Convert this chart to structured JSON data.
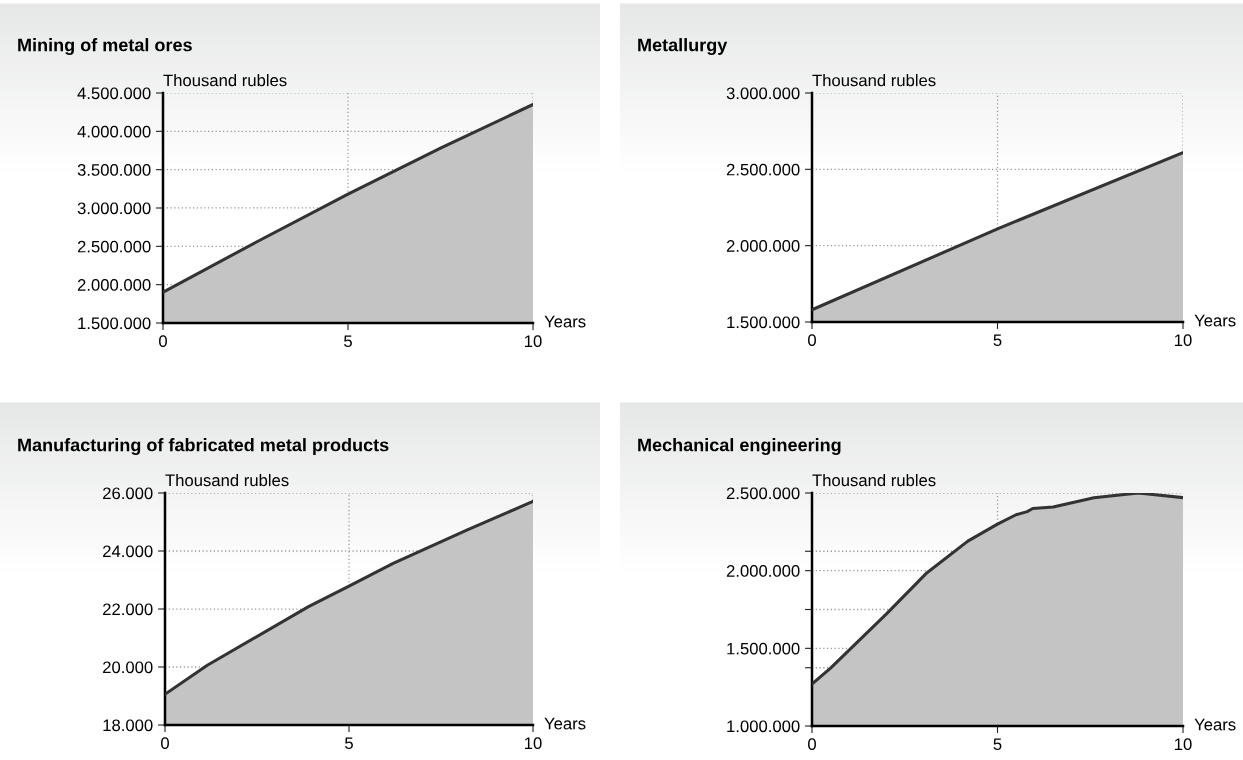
{
  "chart_data": [
    {
      "type": "area",
      "title": "Mining of metal ores",
      "ylabel": "Thousand rubles",
      "xlabel": "Years",
      "grid": true,
      "series": [
        {
          "color": "#c4c4c4",
          "x": [
            0,
            2.5,
            5,
            7.5,
            10
          ],
          "values": [
            1900000,
            2550000,
            3180000,
            3780000,
            4350000
          ]
        }
      ],
      "xlim": [
        0,
        10
      ],
      "xticks": [
        0,
        5,
        10
      ],
      "ylim": [
        1500000,
        4500000
      ],
      "yticks": [
        {
          "value": 1500000,
          "label": "1.500.000"
        },
        {
          "value": 2000000,
          "label": "2.000.000"
        },
        {
          "value": 2500000,
          "label": "2.500.000"
        },
        {
          "value": 3000000,
          "label": "3.000.000"
        },
        {
          "value": 3500000,
          "label": "3.500.000"
        },
        {
          "value": 4000000,
          "label": "4.000.000"
        },
        {
          "value": 4500000,
          "label": "4.500.000"
        }
      ]
    },
    {
      "type": "area",
      "title": "Metallurgy",
      "ylabel": "Thousand rubles",
      "xlabel": "Years",
      "grid": true,
      "series": [
        {
          "color": "#c4c4c4",
          "x": [
            0,
            5,
            10
          ],
          "values": [
            1580000,
            2110000,
            2610000
          ]
        }
      ],
      "xlim": [
        0,
        10
      ],
      "xticks": [
        0,
        5,
        10
      ],
      "ylim": [
        1500000,
        3000000
      ],
      "yticks": [
        {
          "value": 1500000,
          "label": "1.500.000"
        },
        {
          "value": 2000000,
          "label": "2.000.000"
        },
        {
          "value": 2500000,
          "label": "2.500.000"
        },
        {
          "value": 3000000,
          "label": "3.000.000"
        }
      ]
    },
    {
      "type": "area",
      "title": "Manufacturing of fabricated metal products",
      "ylabel": "Thousand rubles",
      "xlabel": "Years",
      "grid": true,
      "series": [
        {
          "color": "#c4c4c4",
          "x": [
            0,
            1.15,
            3.9,
            5,
            6.2,
            8.2,
            10
          ],
          "values": [
            19060,
            20060,
            22080,
            22790,
            23570,
            24720,
            25710
          ]
        }
      ],
      "xlim": [
        0,
        10
      ],
      "xticks": [
        0,
        5,
        10
      ],
      "ylim": [
        18000,
        26000
      ],
      "yticks": [
        {
          "value": 18000,
          "label": "18.000"
        },
        {
          "value": 20000,
          "label": "20.000"
        },
        {
          "value": 22000,
          "label": "22.000"
        },
        {
          "value": 24000,
          "label": "24.000"
        },
        {
          "value": 26000,
          "label": "26.000"
        }
      ]
    },
    {
      "type": "area",
      "title": "Mechanical engineering",
      "ylabel": "Thousand rubles",
      "xlabel": "Years",
      "grid": true,
      "series": [
        {
          "color": "#c4c4c4",
          "x": [
            0,
            0.5,
            2,
            3.1,
            4.2,
            5,
            5.5,
            5.8,
            5.95,
            6.5,
            7.6,
            8.8,
            10
          ],
          "values": [
            1270000,
            1373000,
            1720000,
            1987000,
            2190000,
            2300000,
            2360000,
            2380000,
            2400000,
            2410000,
            2470000,
            2500000,
            2470000
          ]
        }
      ],
      "xlim": [
        0,
        10
      ],
      "xticks": [
        0,
        5,
        10
      ],
      "ylim": [
        1000000,
        2500000
      ],
      "yticks": [
        {
          "value": 1000000,
          "label": "1.000.000"
        },
        {
          "value": 1375000,
          "label": null
        },
        {
          "value": 1500000,
          "label": "1.500.000"
        },
        {
          "value": 1750000,
          "label": null
        },
        {
          "value": 2000000,
          "label": "2.000.000"
        },
        {
          "value": 2125000,
          "label": null
        },
        {
          "value": 2500000,
          "label": "2.500.000"
        }
      ]
    }
  ]
}
